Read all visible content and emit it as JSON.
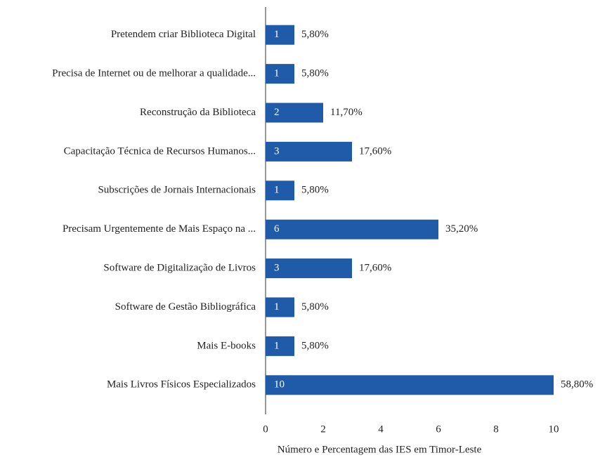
{
  "chart_data": {
    "type": "barh",
    "categories": [
      "Pretendem criar Biblioteca Digital",
      "Precisa de Internet ou de melhorar a qualidade...",
      "Reconstrução da Biblioteca",
      "Capacitação Técnica de Recursos Humanos...",
      "Subscrições de Jornais Internacionais",
      "Precisam Urgentemente de Mais Espaço na ...",
      "Software de Digitalização de Livros",
      "Software de Gestão Bibliográfica",
      "Mais E-books",
      "Mais Livros Físicos Especializados"
    ],
    "values": [
      1,
      1,
      2,
      3,
      1,
      6,
      3,
      1,
      1,
      10
    ],
    "percentage_labels": [
      "5,80%",
      "5,80%",
      "11,70%",
      "17,60%",
      "5,80%",
      "35,20%",
      "17,60%",
      "5,80%",
      "5,80%",
      "58,80%"
    ],
    "color": "#1f5ba8",
    "xlabel": "Número e Percentagem das IES em Timor-Leste",
    "xlim": [
      0,
      11.5
    ],
    "xticks": [
      0,
      2,
      4,
      6,
      8,
      10
    ],
    "grid": false
  }
}
